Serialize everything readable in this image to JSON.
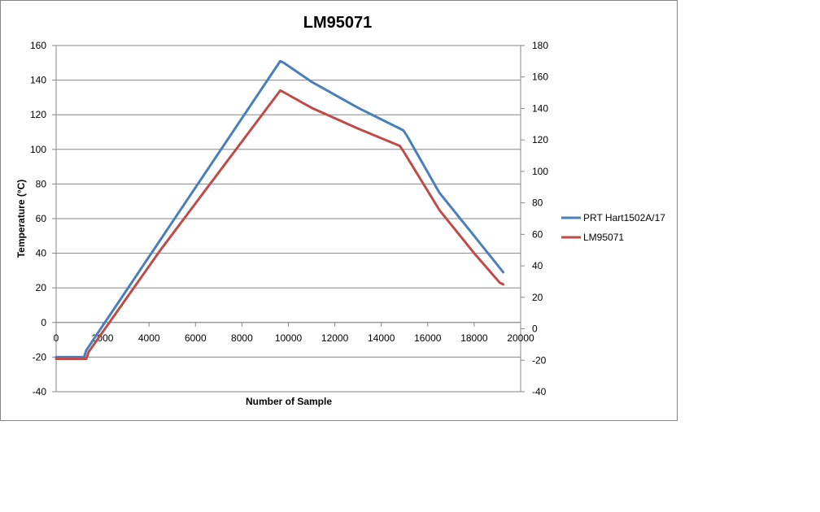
{
  "chart_data": {
    "type": "line",
    "title": "LM95071",
    "xlabel": "Number of Sample",
    "ylabel": "Temperature (°C)",
    "xlim": [
      0,
      20000
    ],
    "ylim": [
      -40,
      160
    ],
    "y2lim": [
      -40,
      180
    ],
    "x_ticks": [
      "0",
      "2000",
      "4000",
      "6000",
      "8000",
      "10000",
      "12000",
      "14000",
      "16000",
      "18000",
      "20000"
    ],
    "y_ticks": [
      "-40",
      "-20",
      "0",
      "20",
      "40",
      "60",
      "80",
      "100",
      "120",
      "140",
      "160"
    ],
    "y2_ticks": [
      "-40",
      "-20",
      "0",
      "20",
      "40",
      "60",
      "80",
      "100",
      "120",
      "140",
      "160",
      "180"
    ],
    "grid": "horizontal",
    "legend": "right",
    "series": [
      {
        "name": "PRT Hart1502A/17",
        "color": "#4a7ebb",
        "x": [
          0,
          1200,
          1300,
          4500,
          9650,
          9800,
          11000,
          13000,
          14950,
          15100,
          16500,
          18000,
          19250
        ],
        "y": [
          -20,
          -20,
          -16,
          48,
          151,
          150,
          139,
          124,
          111,
          108,
          75,
          50,
          29
        ]
      },
      {
        "name": "LM95071",
        "color": "#be4b48",
        "x": [
          0,
          1300,
          1400,
          4500,
          9650,
          9800,
          11000,
          13000,
          14800,
          14950,
          16500,
          18000,
          19100,
          19250
        ],
        "y": [
          -21,
          -21,
          -17,
          42,
          134,
          133,
          124,
          112,
          102,
          99,
          65,
          40,
          23,
          22
        ]
      }
    ]
  }
}
